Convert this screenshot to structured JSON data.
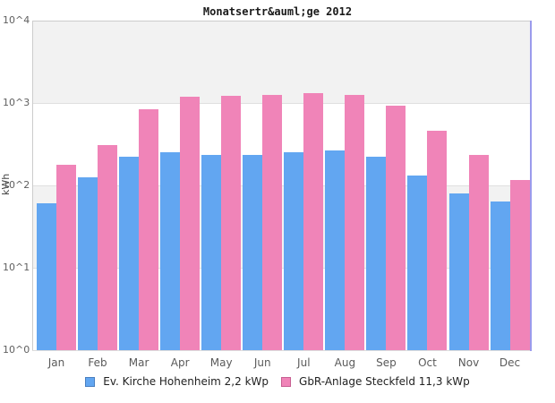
{
  "chart_data": {
    "type": "bar",
    "title": "Monatsertr&auml;ge 2012",
    "ylabel": "kWh",
    "y_scale": "log10",
    "ylim": [
      1,
      10000
    ],
    "y_ticks": [
      "10^4",
      "10^3",
      "10^2",
      "10^1",
      "10^0"
    ],
    "grid": "horizontal-decade-lines",
    "plot_band_colors": [
      "#f2f2f2",
      "#ffffff",
      "#f2f2f2",
      "#ffffff"
    ],
    "legend_position": "bottom",
    "categories": [
      "Jan",
      "Feb",
      "Mar",
      "Apr",
      "May",
      "Jun",
      "Jul",
      "Aug",
      "Sep",
      "Oct",
      "Nov",
      "Dec"
    ],
    "series": [
      {
        "name": "Ev. Kirche Hohenheim 2,2 kWp",
        "color": "#62a6f1",
        "legend_border_color": "#4a7fc0",
        "values": [
          60,
          124,
          225,
          250,
          233,
          235,
          255,
          263,
          220,
          133,
          80,
          64
        ]
      },
      {
        "name": "GbR-Anlage Steckfeld 11,3 kWp",
        "color": "#f084b8",
        "legend_border_color": "#c75f92",
        "values": [
          180,
          310,
          830,
          1190,
          1220,
          1250,
          1320,
          1260,
          930,
          460,
          237,
          116
        ]
      }
    ],
    "axis_colors": {
      "border_top_left": "#cccccc",
      "border_right": "#9b9bec",
      "border_bottom": "#dddddd",
      "gridline": "#e0e0e0",
      "tick_text": "#5f5f5f"
    }
  }
}
